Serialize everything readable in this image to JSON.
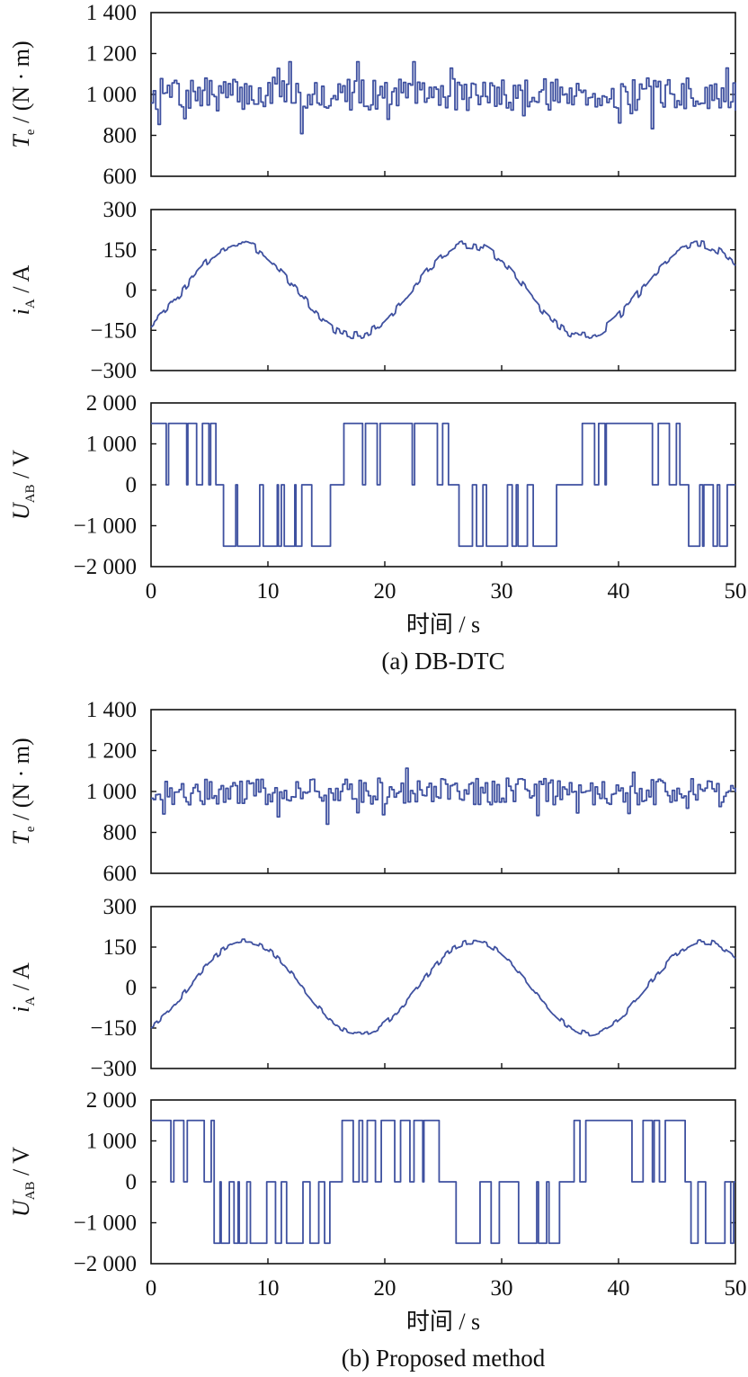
{
  "chart_data": [
    {
      "id": "a",
      "caption": "(a) DB-DTC",
      "xlabel": "时间 / s",
      "xlim": [
        0,
        50
      ],
      "xticks": [
        "0",
        "10",
        "20",
        "30",
        "40",
        "50"
      ],
      "panels": [
        {
          "name": "torque",
          "type": "line",
          "ylabel_main": "T",
          "ylabel_sub": "e",
          "ylabel_unit": " / (N · m)",
          "ylim": [
            600,
            1400
          ],
          "yticks": [
            {
              "v": 1400,
              "t": "1 400"
            },
            {
              "v": 1200,
              "t": "1 200"
            },
            {
              "v": 1000,
              "t": "1 000"
            },
            {
              "v": 800,
              "t": "800"
            },
            {
              "v": 600,
              "t": "600"
            }
          ],
          "signal": {
            "kind": "noise",
            "mean": 1000,
            "amp": 80,
            "min": 790,
            "max": 1160,
            "seed": 7
          }
        },
        {
          "name": "current",
          "type": "line",
          "ylabel_main": "i",
          "ylabel_sub": "A",
          "ylabel_unit": " / A",
          "ylim": [
            -300,
            300
          ],
          "yticks": [
            {
              "v": 300,
              "t": "300"
            },
            {
              "v": 150,
              "t": "150"
            },
            {
              "v": 0,
              "t": "0"
            },
            {
              "v": -150,
              "t": "−150"
            },
            {
              "v": -300,
              "t": "−300"
            }
          ],
          "signal": {
            "kind": "sine",
            "amp": 170,
            "period": 19.6,
            "phase_at_zero": -130,
            "noise": 16,
            "seed": 3
          }
        },
        {
          "name": "voltage",
          "type": "line",
          "ylabel_main": "U",
          "ylabel_sub": "AB",
          "ylabel_unit": " / V",
          "ylim": [
            -2000,
            2000
          ],
          "yticks": [
            {
              "v": 2000,
              "t": "2 000"
            },
            {
              "v": 1000,
              "t": "1 000"
            },
            {
              "v": 0,
              "t": "0"
            },
            {
              "v": -1000,
              "t": "−1 000"
            },
            {
              "v": -2000,
              "t": "−2 000"
            }
          ],
          "signal": {
            "kind": "pwm",
            "level": 1500,
            "positive_windows": [
              [
                0,
                5.3
              ],
              [
                16.5,
                25
              ],
              [
                36,
                45
              ]
            ],
            "negative_windows": [
              [
                5.3,
                15.2
              ],
              [
                26.2,
                34.5
              ],
              [
                45.5,
                50
              ]
            ],
            "seed": 11
          }
        }
      ]
    },
    {
      "id": "b",
      "caption": "(b) Proposed method",
      "xlabel": "时间 / s",
      "xlim": [
        0,
        50
      ],
      "xticks": [
        "0",
        "10",
        "20",
        "30",
        "40",
        "50"
      ],
      "panels": [
        {
          "name": "torque",
          "type": "line",
          "ylabel_main": "T",
          "ylabel_sub": "e",
          "ylabel_unit": " / (N · m)",
          "ylim": [
            600,
            1400
          ],
          "yticks": [
            {
              "v": 1400,
              "t": "1 400"
            },
            {
              "v": 1200,
              "t": "1 200"
            },
            {
              "v": 1000,
              "t": "1 000"
            },
            {
              "v": 800,
              "t": "800"
            },
            {
              "v": 600,
              "t": "600"
            }
          ],
          "signal": {
            "kind": "noise",
            "mean": 1000,
            "amp": 65,
            "min": 840,
            "max": 1145,
            "seed": 21
          }
        },
        {
          "name": "current",
          "type": "line",
          "ylabel_main": "i",
          "ylabel_sub": "A",
          "ylabel_unit": " / A",
          "ylim": [
            -300,
            300
          ],
          "yticks": [
            {
              "v": 300,
              "t": "300"
            },
            {
              "v": 150,
              "t": "150"
            },
            {
              "v": 0,
              "t": "0"
            },
            {
              "v": -150,
              "t": "−150"
            },
            {
              "v": -300,
              "t": "−300"
            }
          ],
          "signal": {
            "kind": "sine",
            "amp": 170,
            "period": 19.6,
            "phase_at_zero": -145,
            "noise": 10,
            "seed": 5
          }
        },
        {
          "name": "voltage",
          "type": "line",
          "ylabel_main": "U",
          "ylabel_sub": "AB",
          "ylabel_unit": " / V",
          "ylim": [
            -2000,
            2000
          ],
          "yticks": [
            {
              "v": 2000,
              "t": "2 000"
            },
            {
              "v": 1000,
              "t": "1 000"
            },
            {
              "v": 0,
              "t": "0"
            },
            {
              "v": -1000,
              "t": "−1 000"
            },
            {
              "v": -2000,
              "t": "−2 000"
            }
          ],
          "signal": {
            "kind": "pwm",
            "level": 1500,
            "positive_windows": [
              [
                0,
                5.4
              ],
              [
                16.2,
                25.2
              ],
              [
                36.2,
                45.5
              ]
            ],
            "negative_windows": [
              [
                5.4,
                15.0
              ],
              [
                26.0,
                35.0
              ],
              [
                46.0,
                50
              ]
            ],
            "seed": 17
          }
        }
      ]
    }
  ]
}
